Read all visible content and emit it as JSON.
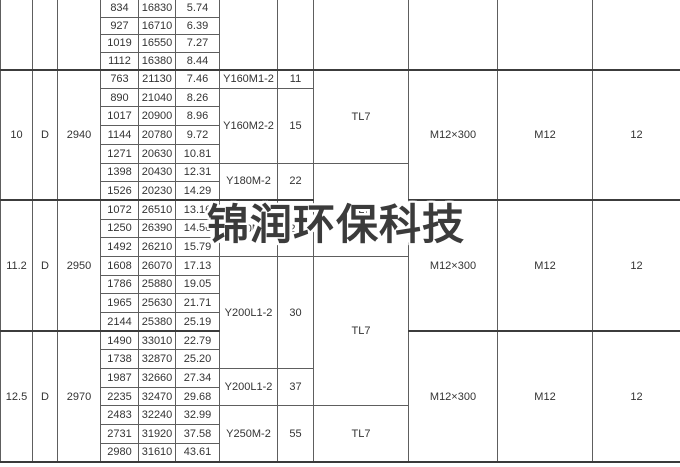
{
  "watermark": {
    "text": "锦润环保科技"
  },
  "colors": {
    "table_border": "#5e5e5e",
    "strong_border": "#3c3c3c",
    "text": "#333333",
    "watermark_text": "#3b3b3b",
    "background": "#ffffff"
  },
  "table": {
    "rows": [
      {
        "cells": [
          {
            "v": "",
            "rs": 4,
            "nt": 1,
            "n": "machine-no-cell"
          },
          {
            "v": "",
            "rs": 4,
            "nt": 1,
            "n": "drive-type-cell"
          },
          {
            "v": "",
            "rs": 4,
            "nt": 1,
            "n": "speed-cell"
          },
          {
            "v": "834",
            "nt": 1,
            "n": "flow-cell"
          },
          {
            "v": "16830",
            "nt": 1,
            "n": "pressure-cell"
          },
          {
            "v": "5.74",
            "nt": 1,
            "n": "shaft-power-cell"
          },
          {
            "v": "",
            "rs": 4,
            "nt": 1,
            "n": "motor-model-cell"
          },
          {
            "v": "",
            "rs": 4,
            "nt": 1,
            "n": "motor-power-cell"
          },
          {
            "v": "",
            "rs": 4,
            "nt": 1,
            "n": "coupling-cell"
          },
          {
            "v": "",
            "rs": 4,
            "nt": 1,
            "n": "anchor-bolt-cell"
          },
          {
            "v": "",
            "rs": 4,
            "nt": 1,
            "n": "nut-cell"
          },
          {
            "v": "",
            "rs": 4,
            "nt": 1,
            "n": "qty-cell"
          }
        ]
      },
      {
        "cells": [
          {
            "v": "927",
            "n": "flow-cell"
          },
          {
            "v": "16710",
            "n": "pressure-cell"
          },
          {
            "v": "6.39",
            "n": "shaft-power-cell"
          }
        ]
      },
      {
        "cells": [
          {
            "v": "1019",
            "n": "flow-cell"
          },
          {
            "v": "16550",
            "n": "pressure-cell"
          },
          {
            "v": "7.27",
            "n": "shaft-power-cell"
          }
        ]
      },
      {
        "cells": [
          {
            "v": "1112",
            "n": "flow-cell"
          },
          {
            "v": "16380",
            "n": "pressure-cell"
          },
          {
            "v": "8.44",
            "n": "shaft-power-cell"
          }
        ]
      },
      {
        "cells": [
          {
            "v": "10",
            "rs": 7,
            "st": 1,
            "n": "machine-no-cell"
          },
          {
            "v": "D",
            "rs": 7,
            "st": 1,
            "n": "drive-type-cell"
          },
          {
            "v": "2940",
            "rs": 7,
            "st": 1,
            "n": "speed-cell"
          },
          {
            "v": "763",
            "st": 1,
            "n": "flow-cell"
          },
          {
            "v": "21130",
            "st": 1,
            "n": "pressure-cell"
          },
          {
            "v": "7.46",
            "st": 1,
            "n": "shaft-power-cell"
          },
          {
            "v": "Y160M1-2",
            "st": 1,
            "n": "motor-model-cell"
          },
          {
            "v": "11",
            "st": 1,
            "n": "motor-power-cell"
          },
          {
            "v": "TL7",
            "rs": 5,
            "st": 1,
            "n": "coupling-cell"
          },
          {
            "v": "M12×300",
            "rs": 7,
            "st": 1,
            "n": "anchor-bolt-cell"
          },
          {
            "v": "M12",
            "rs": 7,
            "st": 1,
            "n": "nut-cell"
          },
          {
            "v": "12",
            "rs": 7,
            "st": 1,
            "n": "qty-cell"
          }
        ]
      },
      {
        "cells": [
          {
            "v": "890",
            "n": "flow-cell"
          },
          {
            "v": "21040",
            "n": "pressure-cell"
          },
          {
            "v": "8.26",
            "n": "shaft-power-cell"
          },
          {
            "v": "Y160M2-2",
            "rs": 4,
            "n": "motor-model-cell"
          },
          {
            "v": "15",
            "rs": 4,
            "n": "motor-power-cell"
          }
        ]
      },
      {
        "cells": [
          {
            "v": "1017",
            "n": "flow-cell"
          },
          {
            "v": "20900",
            "n": "pressure-cell"
          },
          {
            "v": "8.96",
            "n": "shaft-power-cell"
          }
        ]
      },
      {
        "cells": [
          {
            "v": "1144",
            "n": "flow-cell"
          },
          {
            "v": "20780",
            "n": "pressure-cell"
          },
          {
            "v": "9.72",
            "n": "shaft-power-cell"
          }
        ]
      },
      {
        "cells": [
          {
            "v": "1271",
            "n": "flow-cell"
          },
          {
            "v": "20630",
            "n": "pressure-cell"
          },
          {
            "v": "10.81",
            "n": "shaft-power-cell"
          }
        ]
      },
      {
        "cells": [
          {
            "v": "1398",
            "n": "flow-cell"
          },
          {
            "v": "20430",
            "n": "pressure-cell"
          },
          {
            "v": "12.31",
            "n": "shaft-power-cell"
          },
          {
            "v": "Y180M-2",
            "rs": 2,
            "n": "motor-model-cell"
          },
          {
            "v": "22",
            "rs": 2,
            "n": "motor-power-cell"
          },
          {
            "v": "TL7",
            "rs": 5,
            "n": "coupling-cell"
          }
        ]
      },
      {
        "cells": [
          {
            "v": "1526",
            "n": "flow-cell"
          },
          {
            "v": "20230",
            "n": "pressure-cell"
          },
          {
            "v": "14.29",
            "n": "shaft-power-cell"
          }
        ]
      },
      {
        "cells": [
          {
            "v": "11.2",
            "rs": 7,
            "st": 1,
            "n": "machine-no-cell"
          },
          {
            "v": "D",
            "rs": 7,
            "st": 1,
            "n": "drive-type-cell"
          },
          {
            "v": "2950",
            "rs": 7,
            "st": 1,
            "n": "speed-cell"
          },
          {
            "v": "1072",
            "st": 1,
            "n": "flow-cell"
          },
          {
            "v": "26510",
            "st": 1,
            "n": "pressure-cell"
          },
          {
            "v": "13.16",
            "st": 1,
            "n": "shaft-power-cell"
          },
          {
            "v": "Y180M-2",
            "rs": 3,
            "st": 1,
            "n": "motor-model-cell"
          },
          {
            "v": "22",
            "rs": 3,
            "st": 1,
            "n": "motor-power-cell"
          },
          {
            "v": "M12×300",
            "rs": 7,
            "st": 1,
            "n": "anchor-bolt-cell"
          },
          {
            "v": "M12",
            "rs": 7,
            "st": 1,
            "n": "nut-cell"
          },
          {
            "v": "12",
            "rs": 7,
            "st": 1,
            "n": "qty-cell"
          }
        ]
      },
      {
        "cells": [
          {
            "v": "1250",
            "n": "flow-cell"
          },
          {
            "v": "26390",
            "n": "pressure-cell"
          },
          {
            "v": "14.56",
            "n": "shaft-power-cell"
          }
        ]
      },
      {
        "cells": [
          {
            "v": "1492",
            "n": "flow-cell"
          },
          {
            "v": "26210",
            "n": "pressure-cell"
          },
          {
            "v": "15.79",
            "n": "shaft-power-cell"
          }
        ]
      },
      {
        "cells": [
          {
            "v": "1608",
            "n": "flow-cell"
          },
          {
            "v": "26070",
            "n": "pressure-cell"
          },
          {
            "v": "17.13",
            "n": "shaft-power-cell"
          },
          {
            "v": "Y200L1-2",
            "rs": 6,
            "n": "motor-model-cell"
          },
          {
            "v": "30",
            "rs": 6,
            "n": "motor-power-cell"
          },
          {
            "v": "TL7",
            "rs": 8,
            "n": "coupling-cell"
          }
        ]
      },
      {
        "cells": [
          {
            "v": "1786",
            "n": "flow-cell"
          },
          {
            "v": "25880",
            "n": "pressure-cell"
          },
          {
            "v": "19.05",
            "n": "shaft-power-cell"
          }
        ]
      },
      {
        "cells": [
          {
            "v": "1965",
            "n": "flow-cell"
          },
          {
            "v": "25630",
            "n": "pressure-cell"
          },
          {
            "v": "21.71",
            "n": "shaft-power-cell"
          }
        ]
      },
      {
        "cells": [
          {
            "v": "2144",
            "n": "flow-cell"
          },
          {
            "v": "25380",
            "n": "pressure-cell"
          },
          {
            "v": "25.19",
            "n": "shaft-power-cell"
          }
        ]
      },
      {
        "cells": [
          {
            "v": "12.5",
            "rs": 7,
            "st": 1,
            "n": "machine-no-cell"
          },
          {
            "v": "D",
            "rs": 7,
            "st": 1,
            "n": "drive-type-cell"
          },
          {
            "v": "2970",
            "rs": 7,
            "st": 1,
            "n": "speed-cell"
          },
          {
            "v": "1490",
            "st": 1,
            "n": "flow-cell"
          },
          {
            "v": "33010",
            "st": 1,
            "n": "pressure-cell"
          },
          {
            "v": "22.79",
            "st": 1,
            "n": "shaft-power-cell"
          },
          {
            "v": "M12×300",
            "rs": 7,
            "st": 1,
            "n": "anchor-bolt-cell"
          },
          {
            "v": "M12",
            "rs": 7,
            "st": 1,
            "n": "nut-cell"
          },
          {
            "v": "12",
            "rs": 7,
            "st": 1,
            "n": "qty-cell"
          }
        ]
      },
      {
        "cells": [
          {
            "v": "1738",
            "n": "flow-cell"
          },
          {
            "v": "32870",
            "n": "pressure-cell"
          },
          {
            "v": "25.20",
            "n": "shaft-power-cell"
          }
        ]
      },
      {
        "cells": [
          {
            "v": "1987",
            "n": "flow-cell"
          },
          {
            "v": "32660",
            "n": "pressure-cell"
          },
          {
            "v": "27.34",
            "n": "shaft-power-cell"
          },
          {
            "v": "Y200L1-2",
            "rs": 2,
            "n": "motor-model-cell"
          },
          {
            "v": "37",
            "rs": 2,
            "n": "motor-power-cell"
          }
        ]
      },
      {
        "cells": [
          {
            "v": "2235",
            "n": "flow-cell"
          },
          {
            "v": "32470",
            "n": "pressure-cell"
          },
          {
            "v": "29.68",
            "n": "shaft-power-cell"
          }
        ]
      },
      {
        "cells": [
          {
            "v": "2483",
            "n": "flow-cell"
          },
          {
            "v": "32240",
            "n": "pressure-cell"
          },
          {
            "v": "32.99",
            "n": "shaft-power-cell"
          },
          {
            "v": "Y250M-2",
            "rs": 3,
            "n": "motor-model-cell"
          },
          {
            "v": "55",
            "rs": 3,
            "n": "motor-power-cell"
          },
          {
            "v": "TL7",
            "rs": 3,
            "n": "coupling-cell"
          }
        ]
      },
      {
        "cells": [
          {
            "v": "2731",
            "n": "flow-cell"
          },
          {
            "v": "31920",
            "n": "pressure-cell"
          },
          {
            "v": "37.58",
            "n": "shaft-power-cell"
          }
        ]
      },
      {
        "cells": [
          {
            "v": "2980",
            "n": "flow-cell"
          },
          {
            "v": "31610",
            "n": "pressure-cell"
          },
          {
            "v": "43.61",
            "n": "shaft-power-cell"
          }
        ]
      }
    ]
  }
}
